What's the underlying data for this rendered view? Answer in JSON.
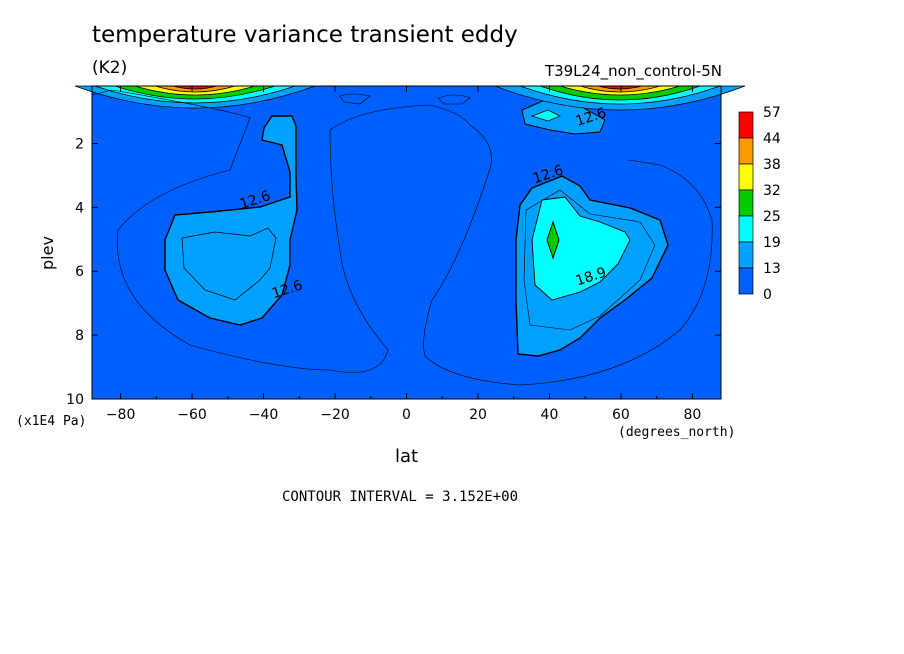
{
  "chart_data": {
    "type": "heatmap",
    "title": "temperature variance transient eddy",
    "units": "(K2)",
    "run_label": "T39L24_non_control-5N",
    "xlabel": "lat",
    "ylabel": "plev",
    "x_units": "(degrees_north)",
    "y_units": "(x1E4 Pa)",
    "footer": "CONTOUR INTERVAL = 3.152E+00",
    "x_ticks": [
      "-80",
      "-60",
      "-40",
      "-20",
      "0",
      "20",
      "40",
      "60",
      "80"
    ],
    "y_ticks": [
      "2",
      "4",
      "6",
      "8",
      "10"
    ],
    "xlim": [
      -88,
      88
    ],
    "ylim": [
      10,
      0.2
    ],
    "contour_labels": [
      {
        "text": "12.6",
        "lat": -42,
        "plev": 3.9
      },
      {
        "text": "12.6",
        "lat": -33,
        "plev": 6.7
      },
      {
        "text": "12.6",
        "lat": 40,
        "plev": 3.1
      },
      {
        "text": "18.9",
        "lat": 52,
        "plev": 6.3
      },
      {
        "text": "12.6",
        "lat": 52,
        "plev": 1.3
      }
    ],
    "colorbar": {
      "levels": [
        "57",
        "44",
        "38",
        "32",
        "25",
        "19",
        "13",
        "0"
      ],
      "colors": [
        "#ff0000",
        "#ff9900",
        "#ffff00",
        "#00cc00",
        "#00ffff",
        "#00a0ff",
        "#0060ff"
      ]
    },
    "grid": false
  }
}
